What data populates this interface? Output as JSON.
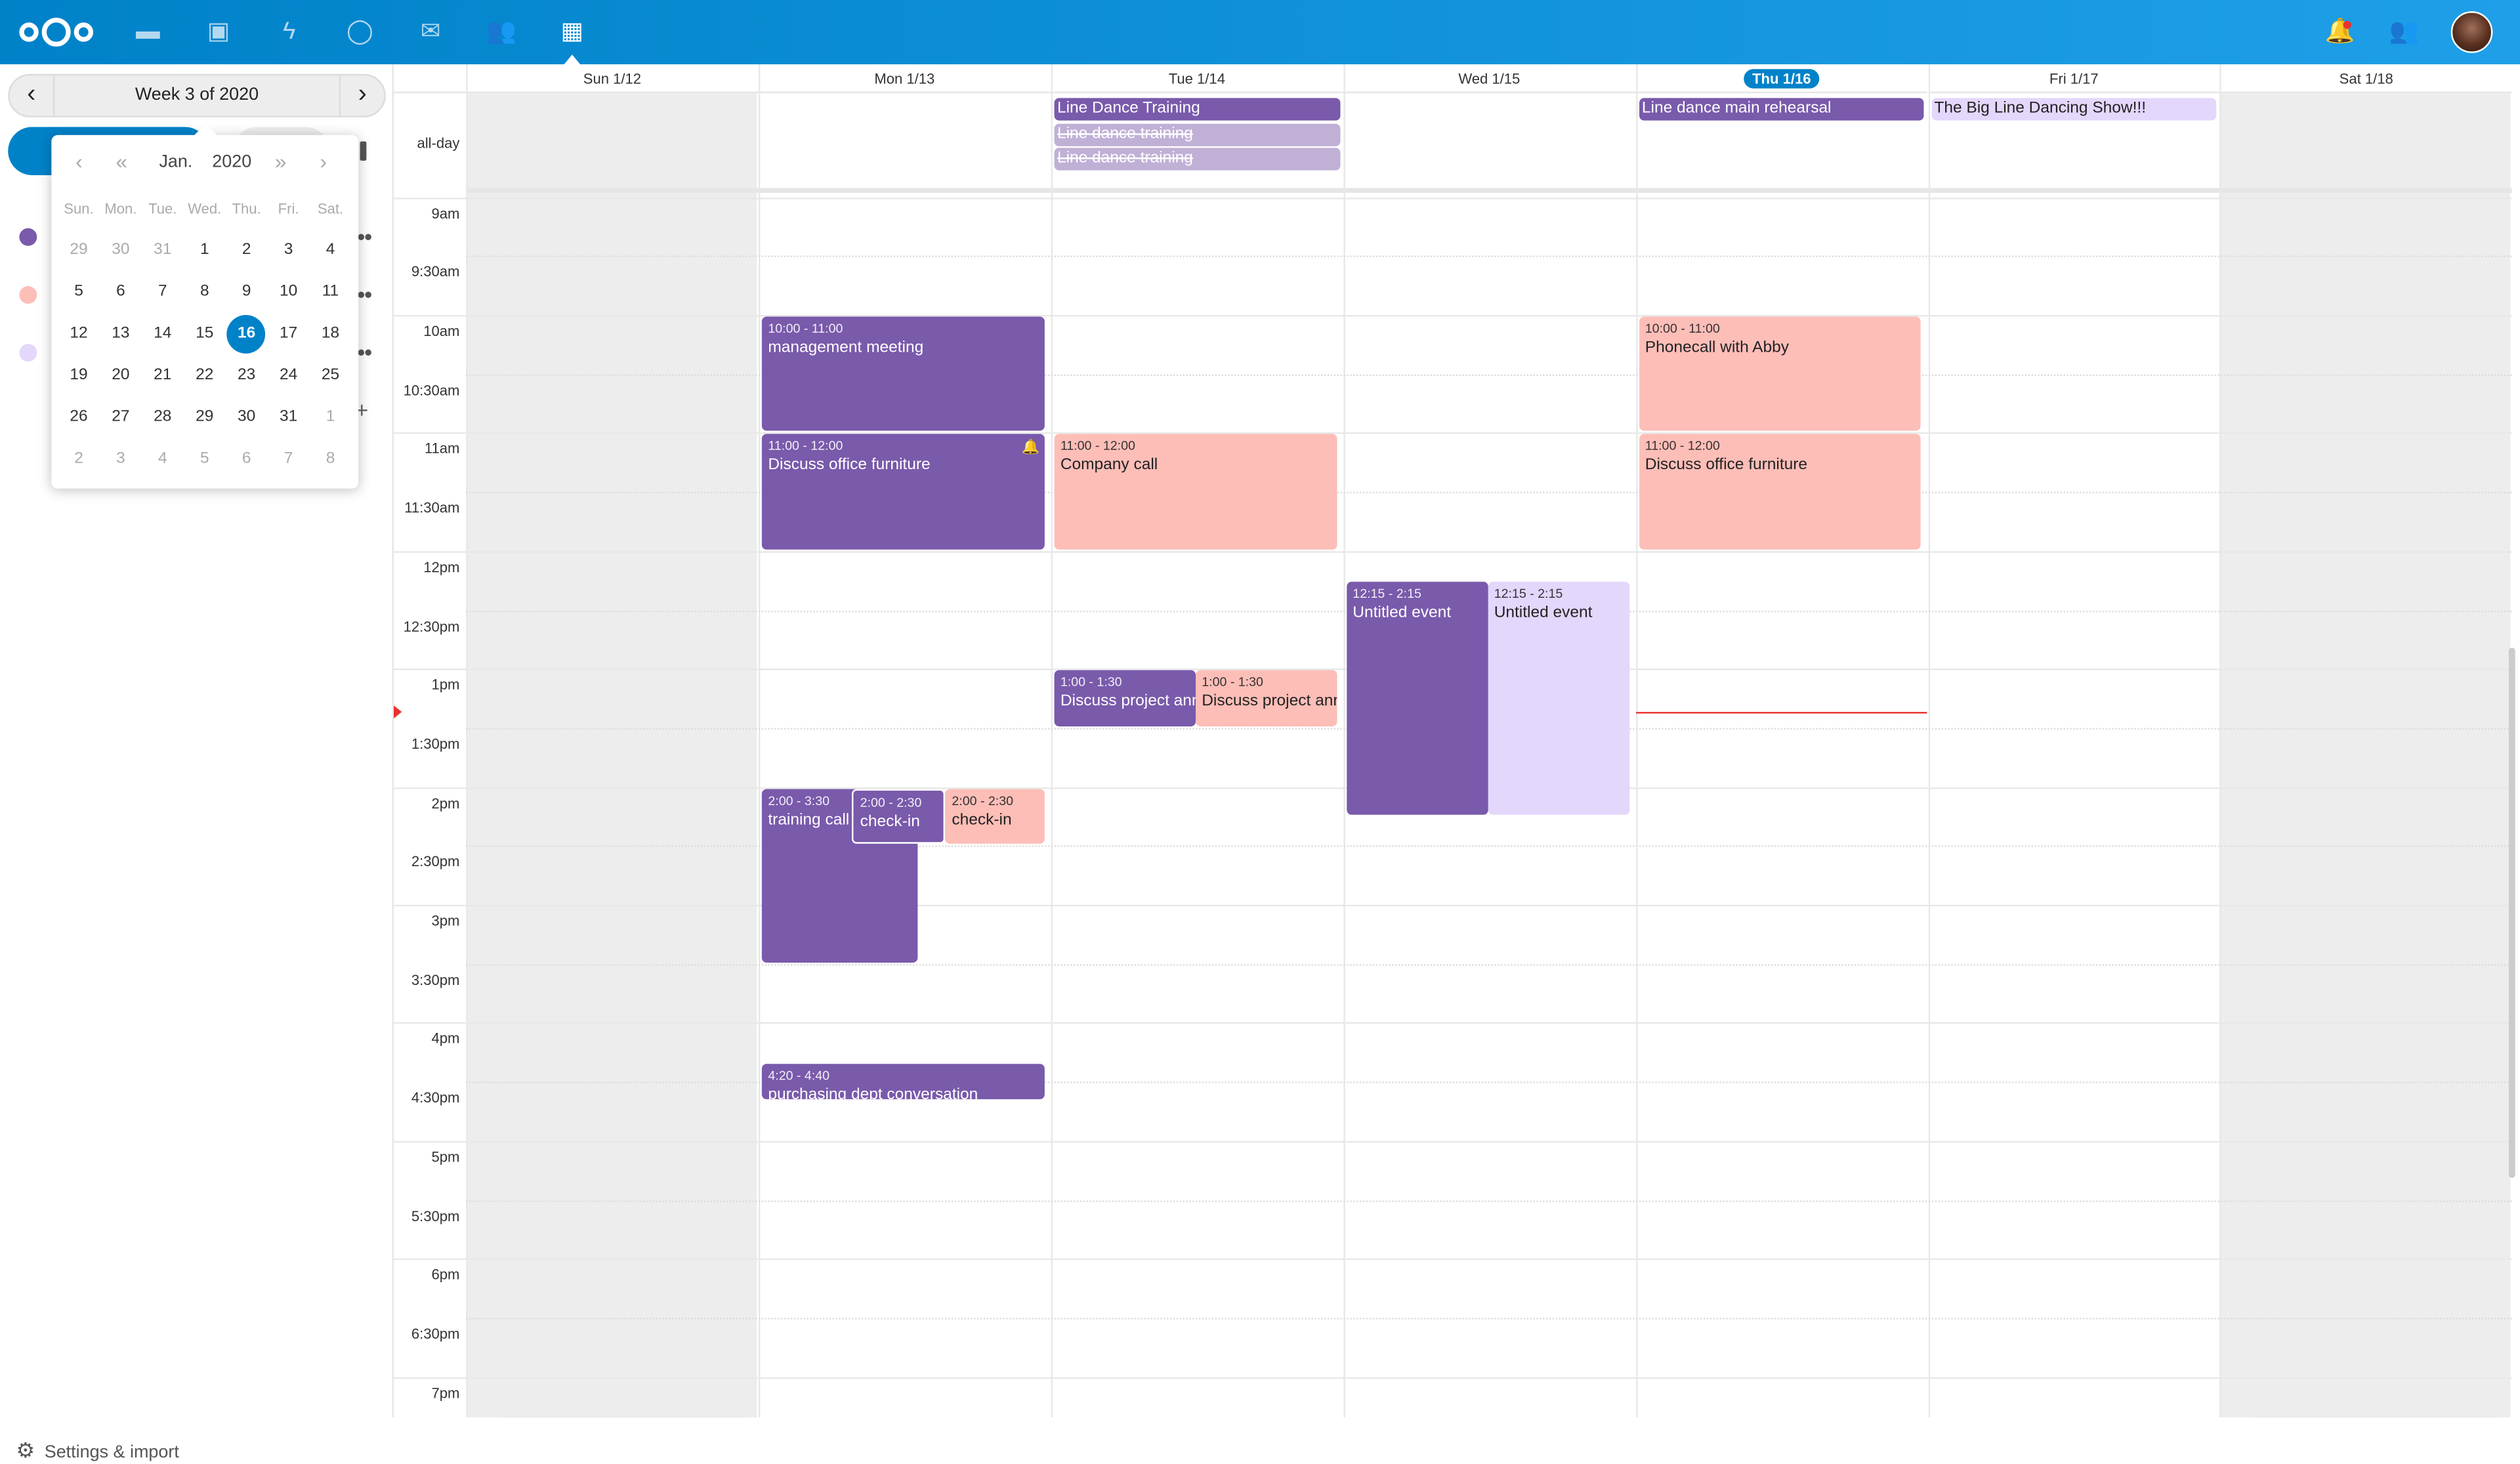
{
  "topbar": {
    "apps": [
      {
        "name": "files",
        "icon": "folder-icon"
      },
      {
        "name": "photos",
        "icon": "image-icon"
      },
      {
        "name": "activity",
        "icon": "lightning-icon"
      },
      {
        "name": "talk",
        "icon": "talk-icon"
      },
      {
        "name": "mail",
        "icon": "mail-icon"
      },
      {
        "name": "contacts",
        "icon": "contacts-icon"
      },
      {
        "name": "calendar",
        "icon": "calendar-icon",
        "active": true
      }
    ],
    "right": [
      "bell-icon",
      "contacts-menu-icon",
      "avatar"
    ],
    "accent": "#0082c9"
  },
  "sidebar": {
    "week_label": "Week 3 of 2020",
    "calendar_colors": [
      "#795aab",
      "#fdbeb8",
      "#e4d7fc"
    ],
    "settings_label": "Settings & import"
  },
  "datepicker": {
    "month": "Jan.",
    "year": "2020",
    "weekdays": [
      "Sun.",
      "Mon.",
      "Tue.",
      "Wed.",
      "Thu.",
      "Fri.",
      "Sat."
    ],
    "weeks": [
      [
        "29",
        "30",
        "31",
        "1",
        "2",
        "3",
        "4"
      ],
      [
        "5",
        "6",
        "7",
        "8",
        "9",
        "10",
        "11"
      ],
      [
        "12",
        "13",
        "14",
        "15",
        "16",
        "17",
        "18"
      ],
      [
        "19",
        "20",
        "21",
        "22",
        "23",
        "24",
        "25"
      ],
      [
        "26",
        "27",
        "28",
        "29",
        "30",
        "31",
        "1"
      ],
      [
        "2",
        "3",
        "4",
        "5",
        "6",
        "7",
        "8"
      ]
    ],
    "selected": "16"
  },
  "calendar": {
    "days": [
      "Sun 1/12",
      "Mon 1/13",
      "Tue 1/14",
      "Wed 1/15",
      "Thu 1/16",
      "Fri 1/17",
      "Sat 1/18"
    ],
    "today_index": 4,
    "allday_label": "all-day",
    "times": [
      "9am",
      "9:30am",
      "10am",
      "10:30am",
      "11am",
      "11:30am",
      "12pm",
      "12:30pm",
      "1pm",
      "1:30pm",
      "2pm",
      "2:30pm",
      "3pm",
      "3:30pm",
      "4pm",
      "4:30pm",
      "5pm",
      "5:30pm",
      "6pm",
      "6:30pm",
      "7pm"
    ],
    "allday_events": [
      {
        "day": 2,
        "title": "Line Dance Training",
        "color": "#795aab",
        "cancelled": false
      },
      {
        "day": 2,
        "title": "Line dance training",
        "color": "#c0b0d6",
        "cancelled": true
      },
      {
        "day": 2,
        "title": "Line dance training",
        "color": "#c0b0d6",
        "cancelled": true
      },
      {
        "day": 4,
        "title": "Line dance main rehearsal",
        "color": "#795aab",
        "cancelled": false
      },
      {
        "day": 5,
        "title": "The Big Line Dancing Show!!!",
        "color": "#e4d7fc",
        "cancelled": false
      }
    ],
    "events": [
      {
        "day": 1,
        "start": "10:00",
        "end": "11:00",
        "title": "management meeting",
        "style": "purple"
      },
      {
        "day": 1,
        "start": "11:00",
        "end": "12:00",
        "title": "Discuss office furniture",
        "style": "purple",
        "alarm": true
      },
      {
        "day": 1,
        "start": "2:00",
        "end": "3:30",
        "title": "training call",
        "style": "purple"
      },
      {
        "day": 1,
        "start": "2:00",
        "end": "2:30",
        "title": "check-in",
        "style": "purple"
      },
      {
        "day": 1,
        "start": "2:00",
        "end": "2:30",
        "title": "check-in",
        "style": "pink"
      },
      {
        "day": 1,
        "start": "4:20",
        "end": "4:40",
        "title": "purchasing dept conversation",
        "style": "purple"
      },
      {
        "day": 2,
        "start": "11:00",
        "end": "12:00",
        "title": "Company call",
        "style": "pink"
      },
      {
        "day": 2,
        "start": "1:00",
        "end": "1:30",
        "title": "Discuss project announcement",
        "style": "purple"
      },
      {
        "day": 2,
        "start": "1:00",
        "end": "1:30",
        "title": "Discuss project announcement",
        "style": "pink"
      },
      {
        "day": 3,
        "start": "12:15",
        "end": "2:15",
        "title": "Untitled event",
        "style": "purple"
      },
      {
        "day": 3,
        "start": "12:15",
        "end": "2:15",
        "title": "Untitled event",
        "style": "lav"
      },
      {
        "day": 4,
        "start": "10:00",
        "end": "11:00",
        "title": "Phonecall with Abby",
        "style": "pink"
      },
      {
        "day": 4,
        "start": "11:00",
        "end": "12:00",
        "title": "Discuss office furniture",
        "style": "pink"
      }
    ],
    "now": "1:22pm"
  }
}
